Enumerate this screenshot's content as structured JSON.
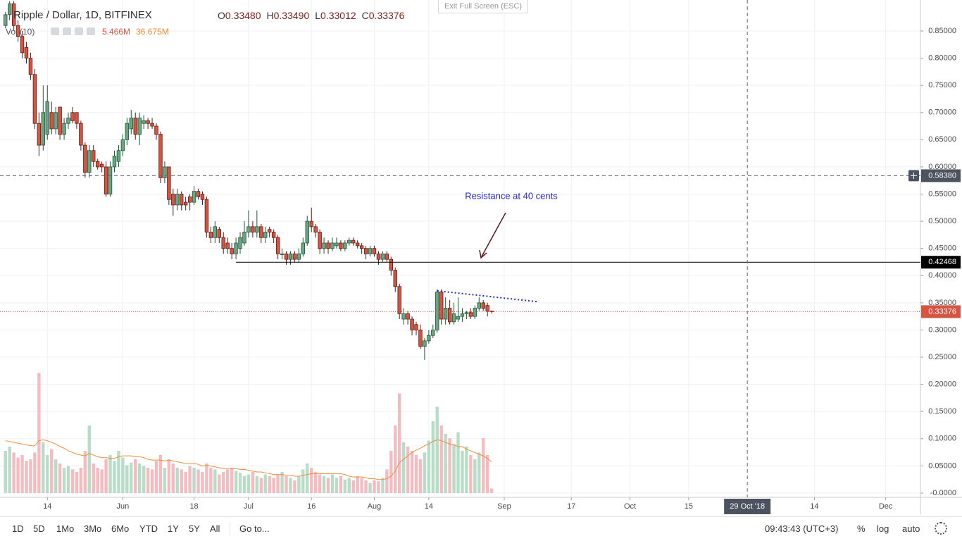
{
  "chart_data": {
    "type": "candlestick",
    "title": "Ripple / Dollar, 1D, BITFINEX",
    "ohlc_legend": [
      {
        "name": "O",
        "value": 0.3348,
        "label": "0.33480"
      },
      {
        "name": "H",
        "value": 0.3349,
        "label": "0.33490"
      },
      {
        "name": "L",
        "value": 0.33012
      },
      {
        "name": "C",
        "value": 0.33376
      }
    ],
    "up_color": "#6ba583",
    "down_color": "#d75442",
    "candles": [
      [
        0.86,
        0.885,
        0.855,
        0.88
      ],
      [
        0.88,
        0.905,
        0.87,
        0.9
      ],
      [
        0.9,
        0.905,
        0.85,
        0.86
      ],
      [
        0.86,
        0.87,
        0.83,
        0.84
      ],
      [
        0.84,
        0.85,
        0.8,
        0.81
      ],
      [
        0.82,
        0.83,
        0.79,
        0.8
      ],
      [
        0.8,
        0.81,
        0.76,
        0.77
      ],
      [
        0.77,
        0.78,
        0.67,
        0.68
      ],
      [
        0.68,
        0.7,
        0.62,
        0.64
      ],
      [
        0.64,
        0.75,
        0.63,
        0.7
      ],
      [
        0.66,
        0.75,
        0.65,
        0.72
      ],
      [
        0.7,
        0.72,
        0.66,
        0.67
      ],
      [
        0.67,
        0.71,
        0.66,
        0.7
      ],
      [
        0.71,
        0.71,
        0.65,
        0.66
      ],
      [
        0.66,
        0.69,
        0.65,
        0.68
      ],
      [
        0.68,
        0.7,
        0.67,
        0.69
      ],
      [
        0.7,
        0.71,
        0.68,
        0.685
      ],
      [
        0.7,
        0.7,
        0.67,
        0.68
      ],
      [
        0.68,
        0.685,
        0.63,
        0.64
      ],
      [
        0.64,
        0.645,
        0.58,
        0.59
      ],
      [
        0.59,
        0.64,
        0.58,
        0.63
      ],
      [
        0.63,
        0.64,
        0.6,
        0.61
      ],
      [
        0.61,
        0.615,
        0.595,
        0.6
      ],
      [
        0.605,
        0.61,
        0.59,
        0.6
      ],
      [
        0.6,
        0.61,
        0.545,
        0.55
      ],
      [
        0.55,
        0.61,
        0.545,
        0.6
      ],
      [
        0.6,
        0.63,
        0.59,
        0.62
      ],
      [
        0.61,
        0.64,
        0.6,
        0.63
      ],
      [
        0.63,
        0.66,
        0.62,
        0.65
      ],
      [
        0.65,
        0.69,
        0.64,
        0.68
      ],
      [
        0.67,
        0.705,
        0.66,
        0.69
      ],
      [
        0.69,
        0.7,
        0.65,
        0.66
      ],
      [
        0.66,
        0.7,
        0.64,
        0.69
      ],
      [
        0.68,
        0.695,
        0.67,
        0.685
      ],
      [
        0.685,
        0.69,
        0.67,
        0.68
      ],
      [
        0.68,
        0.69,
        0.67,
        0.675
      ],
      [
        0.675,
        0.68,
        0.65,
        0.66
      ],
      [
        0.66,
        0.665,
        0.57,
        0.58
      ],
      [
        0.58,
        0.61,
        0.57,
        0.6
      ],
      [
        0.6,
        0.6,
        0.53,
        0.54
      ],
      [
        0.55,
        0.56,
        0.51,
        0.53
      ],
      [
        0.53,
        0.56,
        0.52,
        0.55
      ],
      [
        0.55,
        0.555,
        0.52,
        0.53
      ],
      [
        0.535,
        0.545,
        0.52,
        0.53
      ],
      [
        0.545,
        0.55,
        0.52,
        0.535
      ],
      [
        0.535,
        0.565,
        0.53,
        0.555
      ],
      [
        0.555,
        0.56,
        0.54,
        0.545
      ],
      [
        0.55,
        0.555,
        0.53,
        0.54
      ],
      [
        0.54,
        0.545,
        0.47,
        0.48
      ],
      [
        0.48,
        0.49,
        0.46,
        0.47
      ],
      [
        0.47,
        0.5,
        0.46,
        0.49
      ],
      [
        0.485,
        0.49,
        0.46,
        0.47
      ],
      [
        0.47,
        0.48,
        0.44,
        0.45
      ],
      [
        0.46,
        0.47,
        0.44,
        0.45
      ],
      [
        0.45,
        0.46,
        0.43,
        0.44
      ],
      [
        0.44,
        0.47,
        0.43,
        0.46
      ],
      [
        0.45,
        0.48,
        0.44,
        0.47
      ],
      [
        0.46,
        0.5,
        0.455,
        0.48
      ],
      [
        0.48,
        0.52,
        0.47,
        0.49
      ],
      [
        0.49,
        0.5,
        0.47,
        0.48
      ],
      [
        0.48,
        0.52,
        0.47,
        0.49
      ],
      [
        0.49,
        0.495,
        0.46,
        0.47
      ],
      [
        0.47,
        0.49,
        0.46,
        0.48
      ],
      [
        0.485,
        0.49,
        0.47,
        0.48
      ],
      [
        0.48,
        0.485,
        0.46,
        0.47
      ],
      [
        0.47,
        0.475,
        0.43,
        0.44
      ],
      [
        0.44,
        0.45,
        0.43,
        0.44
      ],
      [
        0.44,
        0.445,
        0.42,
        0.43
      ],
      [
        0.43,
        0.445,
        0.42,
        0.44
      ],
      [
        0.44,
        0.445,
        0.425,
        0.43
      ],
      [
        0.43,
        0.45,
        0.425,
        0.44
      ],
      [
        0.44,
        0.47,
        0.435,
        0.46
      ],
      [
        0.46,
        0.51,
        0.455,
        0.5
      ],
      [
        0.5,
        0.525,
        0.48,
        0.49
      ],
      [
        0.49,
        0.495,
        0.47,
        0.48
      ],
      [
        0.48,
        0.485,
        0.44,
        0.45
      ],
      [
        0.45,
        0.47,
        0.44,
        0.46
      ],
      [
        0.46,
        0.465,
        0.44,
        0.45
      ],
      [
        0.45,
        0.47,
        0.445,
        0.46
      ],
      [
        0.455,
        0.47,
        0.45,
        0.46
      ],
      [
        0.46,
        0.465,
        0.445,
        0.45
      ],
      [
        0.45,
        0.465,
        0.445,
        0.46
      ],
      [
        0.46,
        0.47,
        0.455,
        0.465
      ],
      [
        0.465,
        0.47,
        0.455,
        0.46
      ],
      [
        0.46,
        0.465,
        0.45,
        0.455
      ],
      [
        0.455,
        0.46,
        0.44,
        0.45
      ],
      [
        0.45,
        0.455,
        0.43,
        0.44
      ],
      [
        0.44,
        0.455,
        0.435,
        0.45
      ],
      [
        0.45,
        0.455,
        0.435,
        0.44
      ],
      [
        0.44,
        0.445,
        0.42,
        0.43
      ],
      [
        0.43,
        0.445,
        0.425,
        0.44
      ],
      [
        0.44,
        0.445,
        0.425,
        0.43
      ],
      [
        0.43,
        0.435,
        0.4,
        0.41
      ],
      [
        0.41,
        0.415,
        0.37,
        0.38
      ],
      [
        0.38,
        0.385,
        0.32,
        0.33
      ],
      [
        0.32,
        0.34,
        0.31,
        0.33
      ],
      [
        0.33,
        0.335,
        0.31,
        0.32
      ],
      [
        0.32,
        0.325,
        0.29,
        0.3
      ],
      [
        0.31,
        0.315,
        0.29,
        0.3
      ],
      [
        0.3,
        0.31,
        0.265,
        0.27
      ],
      [
        0.27,
        0.285,
        0.245,
        0.28
      ],
      [
        0.28,
        0.3,
        0.275,
        0.29
      ],
      [
        0.29,
        0.31,
        0.285,
        0.3
      ],
      [
        0.3,
        0.375,
        0.295,
        0.37
      ],
      [
        0.37,
        0.375,
        0.31,
        0.32
      ],
      [
        0.32,
        0.36,
        0.31,
        0.34
      ],
      [
        0.34,
        0.355,
        0.31,
        0.315
      ],
      [
        0.315,
        0.35,
        0.31,
        0.33
      ],
      [
        0.32,
        0.36,
        0.315,
        0.325
      ],
      [
        0.325,
        0.34,
        0.315,
        0.33
      ],
      [
        0.33,
        0.335,
        0.32,
        0.332
      ],
      [
        0.332,
        0.34,
        0.32,
        0.325
      ],
      [
        0.325,
        0.345,
        0.32,
        0.34
      ],
      [
        0.34,
        0.36,
        0.335,
        0.35
      ],
      [
        0.35,
        0.355,
        0.335,
        0.34
      ],
      [
        0.345,
        0.35,
        0.325,
        0.335
      ],
      [
        0.3348,
        0.3349,
        0.33012,
        0.33376
      ]
    ],
    "volume": {
      "name": "Vol (10)",
      "axis": "y2",
      "up_color": "#b9dcc8",
      "down_color": "#f4bcc0",
      "last_label": {
        "value": 5.466,
        "label": "5.466M"
      },
      "values": [
        50,
        55,
        48,
        42,
        45,
        38,
        40,
        48,
        142,
        60,
        45,
        52,
        40,
        35,
        30,
        32,
        28,
        25,
        30,
        50,
        80,
        35,
        30,
        28,
        40,
        45,
        38,
        50,
        42,
        33,
        36,
        40,
        35,
        32,
        30,
        28,
        38,
        45,
        30,
        40,
        35,
        30,
        28,
        25,
        32,
        30,
        28,
        25,
        35,
        30,
        28,
        22,
        25,
        28,
        30,
        26,
        24,
        20,
        22,
        25,
        20,
        18,
        22,
        20,
        18,
        22,
        25,
        20,
        18,
        15,
        20,
        28,
        35,
        30,
        25,
        22,
        20,
        18,
        22,
        18,
        20,
        16,
        18,
        15,
        20,
        18,
        15,
        12,
        15,
        14,
        18,
        28,
        50,
        80,
        118,
        60,
        55,
        50,
        45,
        40,
        48,
        62,
        85,
        102,
        80,
        70,
        65,
        58,
        72,
        50,
        55,
        45,
        40,
        48,
        65,
        45,
        5.466
      ]
    },
    "volume_ma": {
      "color": "#f08c3a",
      "last_label": {
        "value": 36.675,
        "label": "36.675M"
      },
      "values": [
        62,
        61,
        60,
        59,
        58,
        57,
        56,
        56,
        62,
        63,
        62,
        60,
        58,
        55,
        53,
        50,
        48,
        46,
        45,
        44,
        47,
        45,
        43,
        42,
        42,
        41,
        41,
        43,
        44,
        44,
        44,
        43,
        43,
        42,
        40,
        39,
        39,
        39,
        38,
        39,
        38,
        37,
        36,
        35,
        35,
        35,
        34,
        32,
        33,
        32,
        31,
        30,
        29,
        29,
        29,
        29,
        28,
        28,
        27,
        26,
        25,
        25,
        24,
        23,
        22,
        22,
        22,
        21,
        21,
        20,
        20,
        21,
        22,
        23,
        23,
        23,
        23,
        23,
        23,
        23,
        23,
        22,
        20,
        19,
        19,
        19,
        18,
        17,
        17,
        16,
        16,
        17,
        20,
        26,
        36,
        40,
        44,
        48,
        51,
        53,
        56,
        58,
        61,
        63,
        62,
        60,
        58,
        57,
        55,
        55,
        52,
        50,
        48,
        46,
        44,
        41,
        36.675
      ]
    },
    "xlim": [
      -1.3,
      218.3
    ],
    "xticks": [
      {
        "value": 10,
        "label": "14"
      },
      {
        "value": 28,
        "label": "Jun"
      },
      {
        "value": 45,
        "label": "18"
      },
      {
        "value": 58,
        "label": "Jul"
      },
      {
        "value": 73,
        "label": "16"
      },
      {
        "value": 88,
        "label": "Aug"
      },
      {
        "value": 101,
        "label": "14"
      },
      {
        "value": 119,
        "label": "Sep"
      },
      {
        "value": 135,
        "label": "17"
      },
      {
        "value": 149,
        "label": "Oct"
      },
      {
        "value": 163,
        "label": "15"
      },
      {
        "value": 193,
        "label": "14"
      },
      {
        "value": 210,
        "label": "Dec"
      }
    ],
    "ylim": [
      -0.0078,
      0.907
    ],
    "yticks": [
      {
        "value": 0.85,
        "label": "0.85000"
      },
      {
        "value": 0.8,
        "label": "0.80000"
      },
      {
        "value": 0.75,
        "label": "0.75000"
      },
      {
        "value": 0.7,
        "label": "0.70000"
      },
      {
        "value": 0.65,
        "label": "0.65000"
      },
      {
        "value": 0.6,
        "label": "0.60000"
      },
      {
        "value": 0.55,
        "label": "0.55000"
      },
      {
        "value": 0.5,
        "label": "0.50000"
      },
      {
        "value": 0.45,
        "label": "0.45000"
      },
      {
        "value": 0.4,
        "label": "0.40000"
      },
      {
        "value": 0.35,
        "label": "0.35000"
      },
      {
        "value": 0.3,
        "label": "0.30000"
      },
      {
        "value": 0.25,
        "label": "0.25000"
      },
      {
        "value": 0.2,
        "label": "0.20000"
      },
      {
        "value": 0.15,
        "label": "0.15000"
      },
      {
        "value": 0.1,
        "label": "0.10000"
      },
      {
        "value": 0.05,
        "label": "0.05000"
      },
      {
        "value": 0,
        "label": "-0.0000"
      }
    ],
    "y2lim": [
      -5,
      583
    ],
    "grid": true,
    "price_lines": [
      {
        "value": 0.42468,
        "x_start": 55,
        "color": "#000000",
        "style": "solid"
      },
      {
        "value": 0.33376,
        "color": "#d75442",
        "style": "dotted"
      }
    ],
    "crosshair": {
      "x": {
        "value": 177,
        "label": "29 Oct '18"
      },
      "y": {
        "value": 0.5838,
        "label": "0.58380"
      }
    },
    "trendline": {
      "x": [
        103,
        127
      ],
      "y": [
        0.372,
        0.352
      ],
      "color": "#2424d6"
    },
    "annotation": {
      "text": "Resistance at 40 cents",
      "color": "#2424d6"
    }
  },
  "ui": {
    "exit_fullscreen": "Exit Full Screen (ESC)",
    "toolbar": {
      "ranges": [
        "1D",
        "5D",
        "1Mo",
        "3Mo",
        "6Mo",
        "YTD",
        "1Y",
        "5Y",
        "All"
      ],
      "goto": "Go to...",
      "clock": "09:43:43 (UTC+3)",
      "options": [
        "%",
        "log",
        "auto"
      ]
    }
  }
}
